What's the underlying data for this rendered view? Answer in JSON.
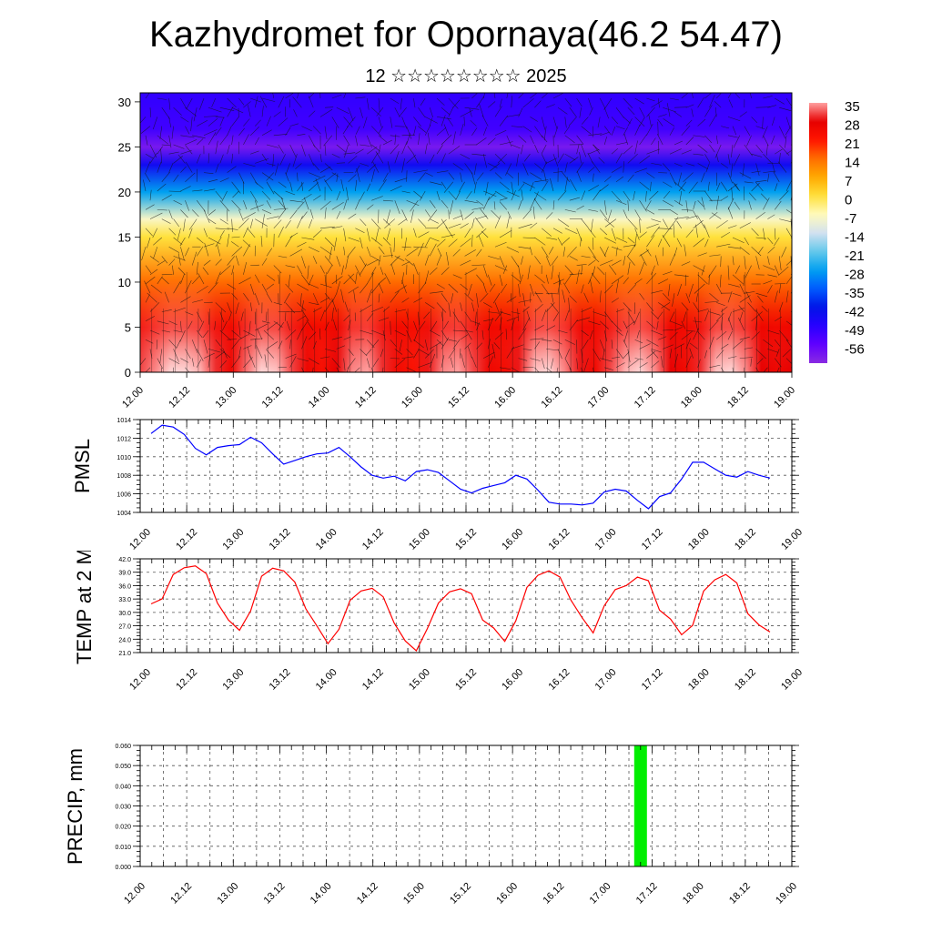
{
  "title": "Kazhydromet for Opornaya(46.2 54.47)",
  "subtitle": "12 ☆☆☆☆☆☆☆☆ 2025",
  "colors": {
    "pmsl_line": "#0000ff",
    "temp_line": "#ff0000",
    "precip_bar": "#00ee00"
  },
  "chart_data": [
    {
      "id": "cross-section",
      "type": "heatmap",
      "title": "",
      "xlabel": "",
      "ylabel": "",
      "x_ticks": [
        "12.00",
        "12.12",
        "13.00",
        "13.12",
        "14.00",
        "14.12",
        "15.00",
        "15.12",
        "16.00",
        "16.12",
        "17.00",
        "17.12",
        "18.00",
        "18.12",
        "19.00"
      ],
      "y_ticks": [
        0,
        5,
        10,
        15,
        20,
        25,
        30
      ],
      "ylim": [
        0,
        31
      ],
      "colorbar_labels": [
        "35",
        "28",
        "21",
        "14",
        "7",
        "0",
        "-7",
        "-14",
        "-21",
        "-28",
        "-35",
        "-42",
        "-49",
        "-56"
      ],
      "colorbar_range": [
        35,
        -63
      ],
      "overlay": "wind vectors",
      "surface_temp": [
        31,
        34,
        38,
        39,
        36,
        30,
        26,
        33,
        39,
        37,
        31,
        26,
        23,
        28,
        34,
        35,
        30,
        25,
        22,
        29,
        34,
        35,
        31,
        26,
        24,
        29,
        37,
        39,
        34,
        29,
        25,
        31,
        36,
        38,
        34,
        28,
        25,
        30,
        37,
        38,
        34,
        28,
        26,
        28
      ],
      "level_profile": [
        {
          "level": 0,
          "temp": 30
        },
        {
          "level": 5,
          "temp": 24
        },
        {
          "level": 10,
          "temp": 14
        },
        {
          "level": 15,
          "temp": 0
        },
        {
          "level": 17,
          "temp": -8
        },
        {
          "level": 20,
          "temp": -28
        },
        {
          "level": 23,
          "temp": -45
        },
        {
          "level": 25,
          "temp": -60
        },
        {
          "level": 27,
          "temp": -52
        },
        {
          "level": 31,
          "temp": -50
        }
      ]
    },
    {
      "id": "pmsl",
      "type": "line",
      "ylabel": "PMSL",
      "ylim": [
        1004,
        1014
      ],
      "y_ticks": [
        "1004",
        "1006",
        "1008",
        "1010",
        "1012",
        "1014"
      ],
      "x_ticks": [
        "12.00",
        "12.12",
        "13.00",
        "13.12",
        "14.00",
        "14.12",
        "15.00",
        "15.12",
        "16.00",
        "16.12",
        "17.00",
        "17.12",
        "18.00",
        "18.12",
        "19.00"
      ],
      "x": [
        0,
        3,
        6,
        9,
        12,
        15,
        18,
        21,
        24,
        27,
        30,
        33,
        36,
        39,
        42,
        45,
        48,
        51,
        54,
        57,
        60,
        63,
        66,
        69,
        72,
        75,
        78,
        81,
        84,
        87,
        90,
        93,
        96,
        99,
        102,
        105,
        108,
        111,
        114,
        117,
        120,
        123,
        126,
        129,
        132,
        135,
        138,
        141,
        144,
        147,
        150,
        153,
        156,
        159,
        162,
        165,
        168
      ],
      "values": [
        1012.5,
        1013.4,
        1013.2,
        1012.4,
        1010.9,
        1010.2,
        1011.0,
        1011.2,
        1011.3,
        1012.1,
        1011.5,
        1010.3,
        1009.2,
        1009.6,
        1010.0,
        1010.3,
        1010.4,
        1011.0,
        1010.0,
        1008.9,
        1008.0,
        1007.7,
        1007.9,
        1007.4,
        1008.4,
        1008.6,
        1008.3,
        1007.4,
        1006.5,
        1006.1,
        1006.6,
        1006.9,
        1007.2,
        1008.0,
        1007.6,
        1006.4,
        1005.1,
        1004.9,
        1004.9,
        1004.8,
        1005.0,
        1006.2,
        1006.5,
        1006.3,
        1005.3,
        1004.4,
        1005.7,
        1006.1,
        1007.6,
        1009.4,
        1009.4,
        1008.7,
        1008.0,
        1007.8,
        1008.4,
        1008.0,
        1007.7
      ]
    },
    {
      "id": "temp2m",
      "type": "line",
      "ylabel": "TEMP at 2 M",
      "ylim": [
        21,
        42
      ],
      "y_ticks": [
        "21.0",
        "24.0",
        "27.0",
        "30.0",
        "33.0",
        "36.0",
        "39.0",
        "42.0"
      ],
      "x_ticks": [
        "12.00",
        "12.12",
        "13.00",
        "13.12",
        "14.00",
        "14.12",
        "15.00",
        "15.12",
        "16.00",
        "16.12",
        "17.00",
        "17.12",
        "18.00",
        "18.12",
        "19.00"
      ],
      "x": [
        0,
        3,
        6,
        9,
        12,
        15,
        18,
        21,
        24,
        27,
        30,
        33,
        36,
        39,
        42,
        45,
        48,
        51,
        54,
        57,
        60,
        63,
        66,
        69,
        72,
        75,
        78,
        81,
        84,
        87,
        90,
        93,
        96,
        99,
        102,
        105,
        108,
        111,
        114,
        117,
        120,
        123,
        126,
        129,
        132,
        135,
        138,
        141,
        144,
        147,
        150,
        153,
        156,
        159,
        162,
        165,
        168
      ],
      "values": [
        31.9,
        33.0,
        38.5,
        40.0,
        40.4,
        38.7,
        32.1,
        28.3,
        26.0,
        30.3,
        38.1,
        39.9,
        39.3,
        36.8,
        30.8,
        27.0,
        23.0,
        26.2,
        32.7,
        34.8,
        35.4,
        33.5,
        27.6,
        23.6,
        21.4,
        26.4,
        32.1,
        34.6,
        35.3,
        34.2,
        28.3,
        26.5,
        23.5,
        28.1,
        35.6,
        38.3,
        39.3,
        37.9,
        32.7,
        28.8,
        25.4,
        31.5,
        35.1,
        36.0,
        37.9,
        37.1,
        30.5,
        28.5,
        25.0,
        27.1,
        34.8,
        37.3,
        38.5,
        36.6,
        29.7,
        27.2,
        25.6
      ]
    },
    {
      "id": "precip",
      "type": "bar",
      "ylabel": "PRECIP, mm",
      "ylim": [
        0,
        0.06
      ],
      "y_ticks": [
        "0.000",
        "0.010",
        "0.020",
        "0.030",
        "0.040",
        "0.050",
        "0.060"
      ],
      "x_ticks": [
        "12.00",
        "12.12",
        "13.00",
        "13.12",
        "14.00",
        "14.12",
        "15.00",
        "15.12",
        "16.00",
        "16.12",
        "17.00",
        "17.12",
        "18.00",
        "18.12",
        "19.00"
      ],
      "bars": [
        {
          "x": 129,
          "value": 0.06
        }
      ]
    }
  ]
}
